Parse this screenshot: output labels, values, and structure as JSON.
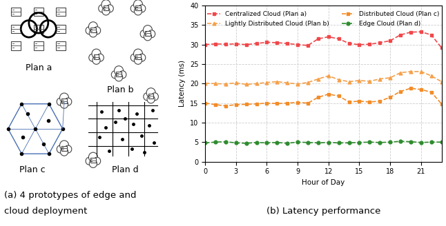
{
  "diagram": {
    "plans": [
      "Plan a",
      "Plan b",
      "Plan c",
      "Plan d"
    ],
    "caption": [
      "(a) 4 prototypes of edge and",
      "cloud deployment"
    ]
  },
  "chart_data": {
    "type": "line",
    "caption": "(b) Latency performance",
    "x_label": "Hour of Day",
    "y_label": "Latency (ms)",
    "x": [
      0,
      1,
      2,
      3,
      4,
      5,
      6,
      7,
      8,
      9,
      10,
      11,
      12,
      13,
      14,
      15,
      16,
      17,
      18,
      19,
      20,
      21,
      22,
      23
    ],
    "xlim": [
      0,
      23
    ],
    "xticks": [
      0,
      3,
      6,
      9,
      12,
      15,
      18,
      21
    ],
    "ylim": [
      0,
      40
    ],
    "yticks": [
      0,
      5,
      10,
      15,
      20,
      25,
      30,
      35,
      40
    ],
    "grid": true,
    "legend": "upper center",
    "line_style": "dashed",
    "series": [
      {
        "name": "Centralized Cloud (Plan a)",
        "color": "#f0474a",
        "marker": "s",
        "values": [
          30.0,
          30.2,
          30.1,
          30.2,
          30.0,
          30.3,
          30.6,
          30.5,
          30.3,
          30.0,
          29.8,
          31.5,
          32.0,
          31.5,
          30.3,
          30.0,
          30.1,
          30.5,
          31.0,
          32.5,
          33.2,
          33.3,
          32.5,
          29.2
        ]
      },
      {
        "name": "Lightly Distributed Cloud (Plan b)",
        "color": "#f5a04a",
        "marker": "^",
        "values": [
          20.1,
          20.0,
          19.9,
          20.2,
          19.8,
          20.0,
          20.3,
          20.5,
          20.2,
          19.9,
          20.3,
          21.2,
          22.0,
          21.0,
          20.5,
          20.8,
          20.6,
          21.2,
          21.5,
          22.8,
          23.1,
          23.1,
          22.0,
          20.5
        ]
      },
      {
        "name": "Distributed Cloud (Plan c)",
        "color": "#f28c28",
        "marker": "s",
        "values": [
          15.0,
          14.6,
          14.3,
          14.6,
          14.7,
          14.8,
          15.0,
          14.9,
          15.0,
          15.2,
          15.0,
          16.5,
          17.3,
          16.8,
          15.3,
          15.5,
          15.3,
          15.5,
          16.5,
          18.0,
          18.8,
          18.5,
          17.8,
          14.8
        ]
      },
      {
        "name": "Edge Cloud (Plan d)",
        "color": "#2e8b2e",
        "marker": "o",
        "values": [
          4.8,
          5.0,
          5.1,
          4.8,
          4.7,
          4.9,
          4.8,
          4.9,
          4.7,
          5.0,
          4.9,
          4.8,
          4.9,
          4.8,
          4.8,
          4.9,
          5.0,
          4.9,
          5.0,
          5.2,
          5.1,
          4.9,
          5.0,
          5.0
        ]
      }
    ]
  }
}
